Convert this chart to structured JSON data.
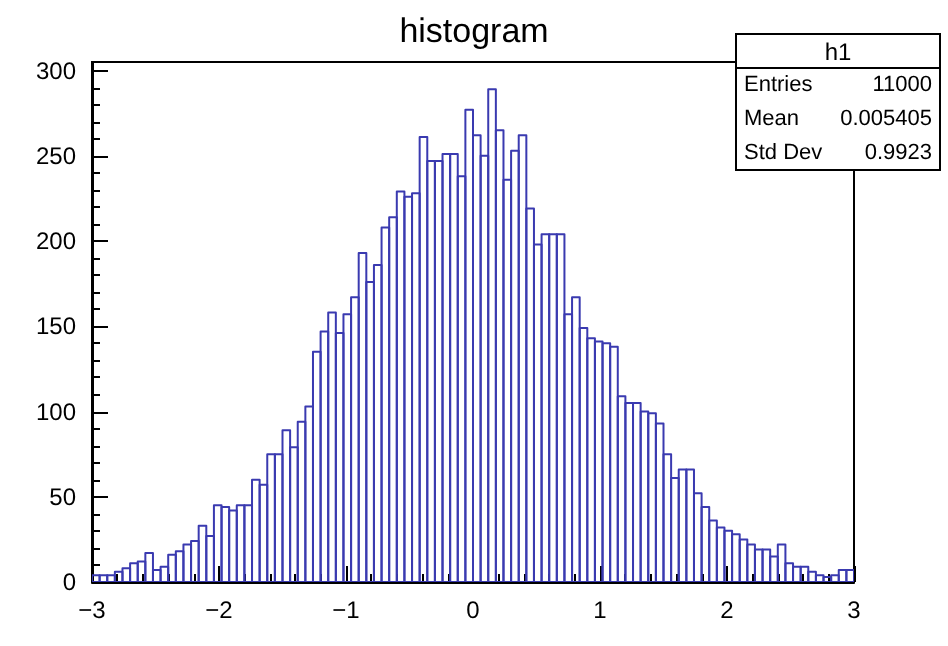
{
  "chart_data": {
    "type": "histogram",
    "title": "histogram",
    "bins": [
      -3,
      -2.94,
      -2.88,
      -2.82,
      -2.76,
      -2.7,
      -2.64,
      -2.58,
      -2.52,
      -2.46,
      -2.4,
      -2.34,
      -2.28,
      -2.22,
      -2.16,
      -2.1,
      -2.04,
      -1.98,
      -1.92,
      -1.86,
      -1.8,
      -1.74,
      -1.68,
      -1.62,
      -1.56,
      -1.5,
      -1.44,
      -1.38,
      -1.32,
      -1.26,
      -1.2,
      -1.14,
      -1.08,
      -1.02,
      -0.96,
      -0.9,
      -0.84,
      -0.78,
      -0.72,
      -0.66,
      -0.6,
      -0.54,
      -0.48,
      -0.42,
      -0.36,
      -0.3,
      -0.24,
      -0.18,
      -0.12,
      -0.06,
      0,
      0.06,
      0.12,
      0.18,
      0.24,
      0.3,
      0.36,
      0.42,
      0.48,
      0.54,
      0.6,
      0.66,
      0.72,
      0.78,
      0.84,
      0.9,
      0.96,
      1.02,
      1.08,
      1.14,
      1.2,
      1.26,
      1.32,
      1.38,
      1.44,
      1.5,
      1.56,
      1.62,
      1.68,
      1.74,
      1.8,
      1.86,
      1.92,
      1.98,
      2.04,
      2.1,
      2.16,
      2.22,
      2.28,
      2.34,
      2.4,
      2.46,
      2.52,
      2.58,
      2.64,
      2.7,
      2.76,
      2.82,
      2.88,
      2.94,
      3
    ],
    "values": [
      4,
      4,
      4,
      6,
      8,
      11,
      12,
      17,
      7,
      9,
      16,
      18,
      22,
      24,
      33,
      27,
      45,
      44,
      42,
      45,
      45,
      60,
      57,
      75,
      75,
      89,
      79,
      94,
      103,
      135,
      147,
      158,
      146,
      157,
      167,
      193,
      176,
      186,
      208,
      214,
      229,
      226,
      228,
      261,
      247,
      247,
      251,
      251,
      238,
      277,
      262,
      250,
      289,
      265,
      236,
      253,
      262,
      219,
      198,
      204,
      204,
      204,
      157,
      167,
      149,
      143,
      141,
      140,
      138,
      109,
      105,
      105,
      100,
      99,
      93,
      75,
      61,
      66,
      66,
      52,
      44,
      36,
      32,
      30,
      28,
      25,
      22,
      19,
      19,
      15,
      22,
      11,
      9,
      9,
      6,
      4,
      3,
      4,
      7,
      7
    ],
    "color": "#3a3ab0",
    "xlim": [
      -3,
      3
    ],
    "xticks": [
      -3,
      -2,
      -1,
      0,
      1,
      2,
      3
    ],
    "ylim": [
      0,
      305
    ],
    "yticks": [
      0,
      50,
      100,
      150,
      200,
      250,
      300
    ],
    "grid": false,
    "annotations": [
      "h1",
      "Entries",
      "11000",
      "Mean",
      "0.005405",
      "Std Dev",
      "0.9923"
    ]
  }
}
